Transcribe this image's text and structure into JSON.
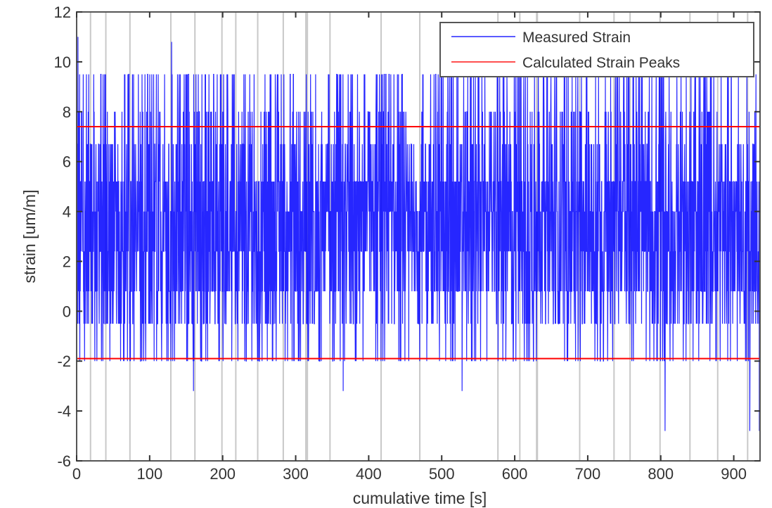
{
  "chart_data": {
    "type": "line",
    "title": "",
    "xlabel": "cumulative time [s]",
    "ylabel": "strain [um/m]",
    "xlim": [
      0,
      936
    ],
    "ylim": [
      -6,
      12
    ],
    "xticks": [
      0,
      100,
      200,
      300,
      400,
      500,
      600,
      700,
      800,
      900
    ],
    "yticks": [
      -6,
      -4,
      -2,
      0,
      2,
      4,
      6,
      8,
      10,
      12
    ],
    "grid": false,
    "legend_position": "upper right",
    "legend": [
      "Measured Strain",
      "Calculated Strain Peaks"
    ],
    "series": [
      {
        "name": "Measured Strain",
        "color": "#0000ff",
        "style": "dense quantized signal oscillating mostly between 0.8 and 5.2 um/m, with spikes up to ~11 and dips down to ~-4.8",
        "quantized_levels": [
          -4.8,
          -3.2,
          -2.0,
          -0.5,
          0.8,
          2.4,
          4.0,
          5.2,
          6.7,
          8.0,
          9.5,
          11.0
        ],
        "notable_extremes": [
          {
            "x": 2,
            "y": 11.0
          },
          {
            "x": 130,
            "y": 10.8
          },
          {
            "x": 160,
            "y": -3.2
          },
          {
            "x": 365,
            "y": -3.2
          },
          {
            "x": 528,
            "y": -3.2
          },
          {
            "x": 806,
            "y": -4.8
          },
          {
            "x": 922,
            "y": -4.8
          },
          {
            "x": 935,
            "y": -4.8
          }
        ],
        "x": [
          0,
          20,
          40,
          60,
          80,
          100,
          120,
          140,
          160,
          180,
          200,
          220,
          240,
          260,
          280,
          300,
          320,
          340,
          360,
          380,
          400,
          420,
          440,
          460,
          480,
          500,
          520,
          540,
          560,
          580,
          600,
          620,
          640,
          660,
          680,
          700,
          720,
          740,
          760,
          780,
          800,
          820,
          840,
          860,
          880,
          900,
          920,
          935
        ],
        "values": [
          2.4,
          4.0,
          2.4,
          4.0,
          2.4,
          4.0,
          2.4,
          4.0,
          2.4,
          4.0,
          2.4,
          2.4,
          4.0,
          2.4,
          2.4,
          4.0,
          2.4,
          4.0,
          2.4,
          2.4,
          2.4,
          4.0,
          2.4,
          4.0,
          2.4,
          2.4,
          4.0,
          2.4,
          4.0,
          2.4,
          2.4,
          4.0,
          2.4,
          4.0,
          2.4,
          2.4,
          4.0,
          2.4,
          4.0,
          2.4,
          2.4,
          4.0,
          2.4,
          4.0,
          4.0,
          2.4,
          2.4,
          2.4
        ]
      },
      {
        "name": "Calculated Strain Peaks (upper)",
        "color": "#ff0000",
        "x": [
          0,
          936
        ],
        "values": [
          7.4,
          7.4
        ]
      },
      {
        "name": "Calculated Strain Peaks (lower)",
        "color": "#ff0000",
        "x": [
          0,
          936
        ],
        "values": [
          -1.9,
          -1.9
        ]
      }
    ],
    "segment_boundaries_s": [
      19,
      40,
      73,
      129,
      162,
      199,
      218,
      248,
      283,
      314,
      316,
      347,
      417,
      470,
      577,
      607,
      630,
      631,
      689,
      736,
      758,
      799,
      840,
      878,
      919
    ]
  },
  "legend": {
    "items": [
      {
        "label": "Measured Strain",
        "color": "#4a4aff"
      },
      {
        "label": "Calculated Strain Peaks",
        "color": "#ff4040"
      }
    ]
  },
  "axes": {
    "xlabel": "cumulative time [s]",
    "ylabel": "strain [um/m]",
    "xtick_labels": [
      "0",
      "100",
      "200",
      "300",
      "400",
      "500",
      "600",
      "700",
      "800",
      "900"
    ],
    "ytick_labels": [
      "-6",
      "-4",
      "-2",
      "0",
      "2",
      "4",
      "6",
      "8",
      "10",
      "12"
    ]
  },
  "colors": {
    "signal": "#0000ff",
    "peaks": "#ff0000",
    "segment_lines": "#c8c8c8",
    "axis": "#555555"
  }
}
